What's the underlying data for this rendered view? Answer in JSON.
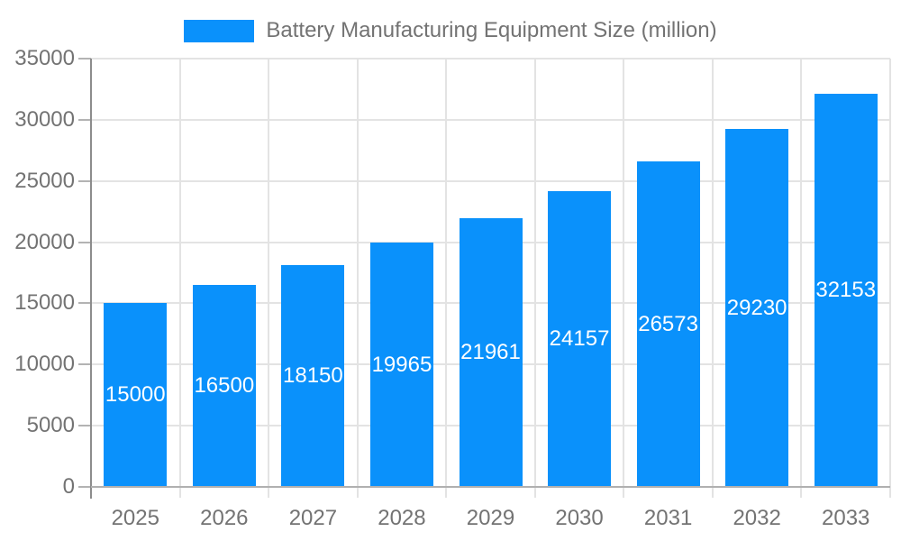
{
  "legend": {
    "label": "Battery Manufacturing Equipment Size (million)"
  },
  "chart_data": {
    "type": "bar",
    "title": "Battery Manufacturing Equipment Size (million)",
    "categories": [
      "2025",
      "2026",
      "2027",
      "2028",
      "2029",
      "2030",
      "2031",
      "2032",
      "2033"
    ],
    "values": [
      15000,
      16500,
      18150,
      19965,
      21961,
      24157,
      26573,
      29230,
      32153
    ],
    "value_labels": [
      "15000",
      "16500",
      "18150",
      "19965",
      "21961",
      "24157",
      "26573",
      "29230",
      "32153"
    ],
    "xlabel": "",
    "ylabel": "",
    "ylim": [
      0,
      35000
    ],
    "ytick_step": 5000,
    "ytick_labels": [
      "0",
      "5000",
      "10000",
      "15000",
      "20000",
      "25000",
      "30000",
      "35000"
    ],
    "grid": true,
    "legend_position": "top",
    "colors": {
      "bar": "#0a91fb",
      "value_label": "#ffffff",
      "axis_label": "#737373",
      "grid": "#e3e3e3",
      "yaxis_line": "#8c8c8c",
      "xaxis_line": "#b0b0b0",
      "ytick": "#b3b3b3"
    }
  }
}
